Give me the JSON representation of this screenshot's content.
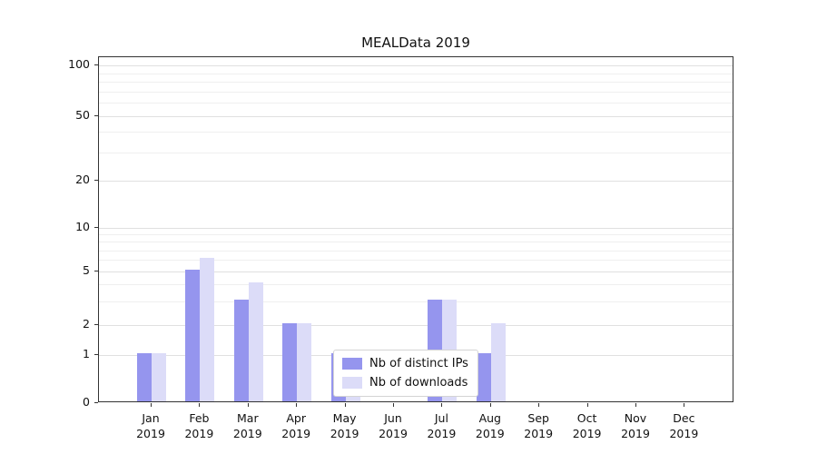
{
  "chart_data": {
    "type": "bar",
    "title": "MEALData 2019",
    "categories": [
      "Jan",
      "Feb",
      "Mar",
      "Apr",
      "May",
      "Jun",
      "Jul",
      "Aug",
      "Sep",
      "Oct",
      "Nov",
      "Dec"
    ],
    "category_year": "2019",
    "series": [
      {
        "name": "Nb of distinct IPs",
        "color": "#9595ee",
        "values": [
          1,
          5,
          3,
          2,
          1,
          0,
          3,
          1,
          0,
          0,
          0,
          0
        ]
      },
      {
        "name": "Nb of downloads",
        "color": "#dcdcf8",
        "values": [
          1,
          6,
          4,
          2,
          1,
          0,
          3,
          2,
          0,
          0,
          0,
          0
        ]
      }
    ],
    "y_ticks": [
      0,
      1,
      2,
      5,
      10,
      20,
      50,
      100
    ],
    "y_minor_gridlines": [
      3,
      4,
      6,
      7,
      8,
      9,
      30,
      40,
      60,
      70,
      80,
      90
    ],
    "y_scale": "log-like",
    "ylim": [
      0,
      100
    ],
    "grid": true,
    "legend_position": "lower center"
  }
}
